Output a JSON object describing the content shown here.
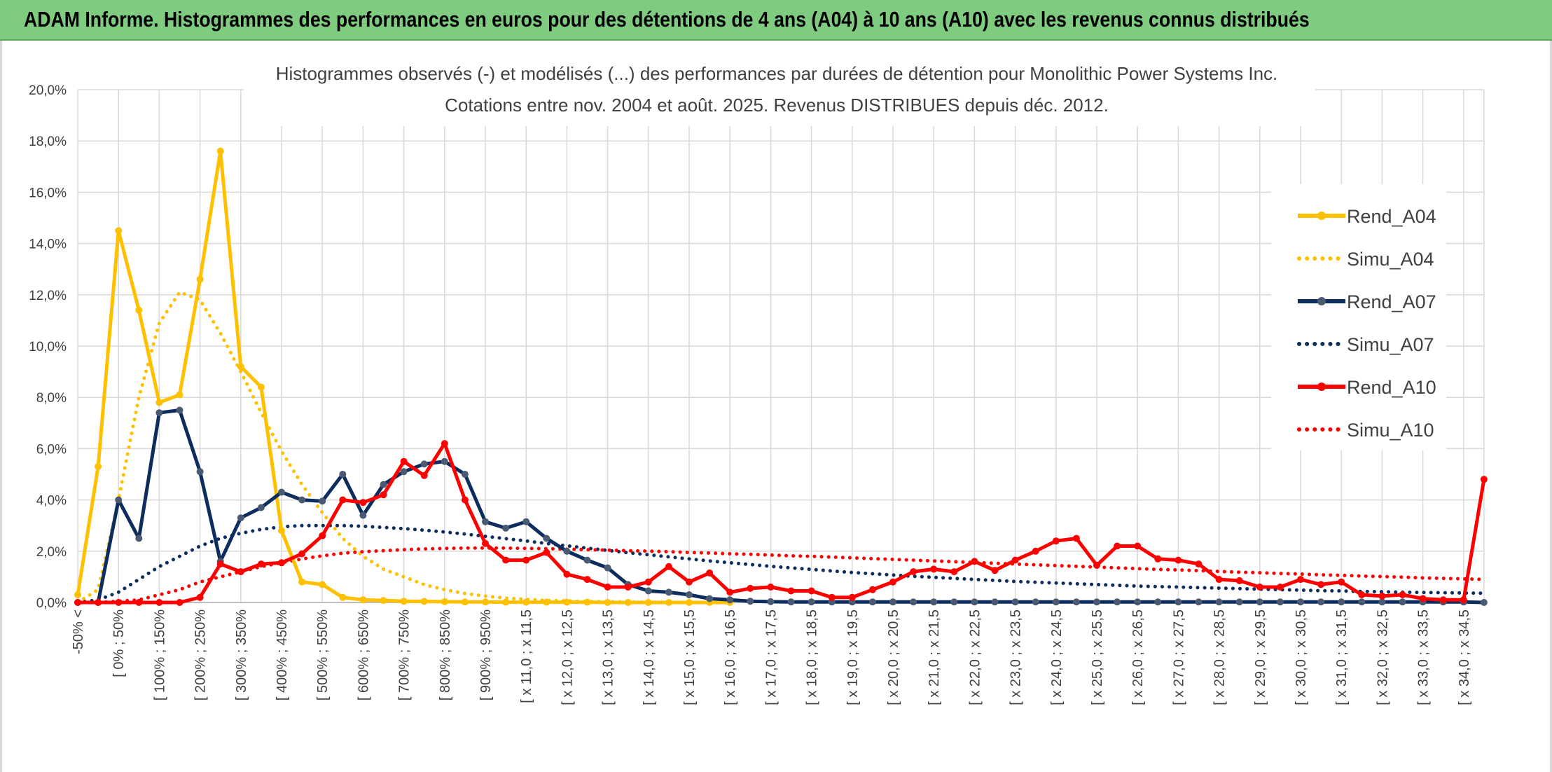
{
  "header": {
    "title": "ADAM Informe. Histogrammes des performances en euros pour des détentions de 4 ans (A04) à 10 ans (A10) avec les revenus connus distribués"
  },
  "chart_data": {
    "type": "line",
    "title_lines": [
      "Histogrammes observés (-) et modélisés (...) des performances par durées de détention pour Monolithic Power Systems Inc.",
      "Cotations entre nov. 2004 et août. 2025. Revenus DISTRIBUES depuis déc. 2012."
    ],
    "y_axis": {
      "min": 0,
      "max": 20,
      "step": 2,
      "tick_labels": [
        "0,0%",
        "2,0%",
        "4,0%",
        "6,0%",
        "8,0%",
        "10,0%",
        "12,0%",
        "14,0%",
        "16,0%",
        "18,0%",
        "20,0%"
      ]
    },
    "x_axis": {
      "category_count": 70,
      "shown_labels": [
        {
          "index": 0,
          "label": "-50% <"
        },
        {
          "index": 2,
          "label": "[ 0% ; 50%"
        },
        {
          "index": 4,
          "label": "[ 100% ; 150%"
        },
        {
          "index": 6,
          "label": "[ 200% ; 250%"
        },
        {
          "index": 8,
          "label": "[ 300% ; 350%"
        },
        {
          "index": 10,
          "label": "[ 400% ; 450%"
        },
        {
          "index": 12,
          "label": "[ 500% ; 550%"
        },
        {
          "index": 14,
          "label": "[ 600% ; 650%"
        },
        {
          "index": 16,
          "label": "[ 700% ; 750%"
        },
        {
          "index": 18,
          "label": "[ 800% ; 850%"
        },
        {
          "index": 20,
          "label": "[ 900% ; 950%"
        },
        {
          "index": 22,
          "label": "[ x 11,0 ; x 11,5"
        },
        {
          "index": 24,
          "label": "[ x 12,0 ; x 12,5"
        },
        {
          "index": 26,
          "label": "[ x 13,0 ; x 13,5"
        },
        {
          "index": 28,
          "label": "[ x 14,0 ; x 14,5"
        },
        {
          "index": 30,
          "label": "[ x 15,0 ; x 15,5"
        },
        {
          "index": 32,
          "label": "[ x 16,0 ; x 16,5"
        },
        {
          "index": 34,
          "label": "[ x 17,0 ; x 17,5"
        },
        {
          "index": 36,
          "label": "[ x 18,0 ; x 18,5"
        },
        {
          "index": 38,
          "label": "[ x 19,0 ; x 19,5"
        },
        {
          "index": 40,
          "label": "[ x 20,0 ; x 20,5"
        },
        {
          "index": 42,
          "label": "[ x 21,0 ; x 21,5"
        },
        {
          "index": 44,
          "label": "[ x 22,0 ; x 22,5"
        },
        {
          "index": 46,
          "label": "[ x 23,0 ; x 23,5"
        },
        {
          "index": 48,
          "label": "[ x 24,0 ; x 24,5"
        },
        {
          "index": 50,
          "label": "[ x 25,0 ; x 25,5"
        },
        {
          "index": 52,
          "label": "[ x 26,0 ; x 26,5"
        },
        {
          "index": 54,
          "label": "[ x 27,0 ; x 27,5"
        },
        {
          "index": 56,
          "label": "[ x 28,0 ; x 28,5"
        },
        {
          "index": 58,
          "label": "[ x 29,0 ; x 29,5"
        },
        {
          "index": 60,
          "label": "[ x 30,0 ; x 30,5"
        },
        {
          "index": 62,
          "label": "[ x 31,0 ; x 31,5"
        },
        {
          "index": 64,
          "label": "[ x 32,0 ; x 32,5"
        },
        {
          "index": 66,
          "label": "[ x 33,0 ; x 33,5"
        },
        {
          "index": 68,
          "label": "[ x 34,0 ; x 34,5"
        }
      ]
    },
    "gridlines": true,
    "legend_position": "right",
    "series": [
      {
        "name": "Rend_A04",
        "style": "solid",
        "color": "#ffc000",
        "values": [
          0.3,
          5.3,
          14.5,
          11.4,
          7.8,
          8.1,
          12.6,
          17.6,
          9.2,
          8.4,
          2.8,
          0.8,
          0.7,
          0.2,
          0.1,
          0.08,
          0.05,
          0.04,
          0.03,
          0.02,
          0.02,
          0.01,
          0.01,
          0.01,
          0.01,
          0.01,
          0.0,
          0.0,
          0.0,
          0.0,
          0.0,
          0.0,
          0.0
        ]
      },
      {
        "name": "Simu_A04",
        "style": "dotted",
        "color": "#ffc000",
        "values": [
          0.0,
          0.5,
          4.0,
          8.0,
          10.9,
          12.1,
          11.8,
          10.5,
          9.0,
          7.4,
          5.9,
          4.6,
          3.5,
          2.5,
          1.8,
          1.3,
          1.0,
          0.7,
          0.5,
          0.35,
          0.25,
          0.17,
          0.12,
          0.08,
          0.06,
          0.04,
          0.03,
          0.02,
          0.01,
          0.01,
          0.0,
          0.0
        ]
      },
      {
        "name": "Rend_A07",
        "style": "solid",
        "color": "#0c2d5e",
        "values": [
          0,
          0,
          4.0,
          2.5,
          7.4,
          7.5,
          5.1,
          1.6,
          3.3,
          3.7,
          4.3,
          4.0,
          3.95,
          5.0,
          3.4,
          4.6,
          5.1,
          5.4,
          5.5,
          5.0,
          3.15,
          2.9,
          3.15,
          2.5,
          2.0,
          1.65,
          1.35,
          0.7,
          0.45,
          0.4,
          0.3,
          0.15,
          0.1,
          0.05,
          0.03,
          0.02,
          0.02,
          0.02,
          0.02,
          0.02,
          0.02,
          0.02,
          0.02,
          0.02,
          0.02,
          0.02,
          0.02,
          0.02,
          0.02,
          0.02,
          0.02,
          0.02,
          0.02,
          0.02,
          0.02,
          0.02,
          0.02,
          0.02,
          0.02,
          0.02,
          0.02,
          0.02,
          0.02,
          0.02,
          0.02,
          0.02,
          0.02,
          0.02,
          0.02,
          0.0
        ]
      },
      {
        "name": "Simu_A07",
        "style": "dotted",
        "color": "#0c2d5e",
        "values": [
          0.0,
          0.1,
          0.4,
          0.9,
          1.4,
          1.8,
          2.2,
          2.5,
          2.7,
          2.85,
          2.95,
          3.0,
          3.0,
          3.0,
          2.97,
          2.93,
          2.88,
          2.82,
          2.75,
          2.67,
          2.58,
          2.49,
          2.4,
          2.3,
          2.21,
          2.12,
          2.03,
          1.94,
          1.86,
          1.78,
          1.7,
          1.62,
          1.55,
          1.48,
          1.41,
          1.35,
          1.29,
          1.23,
          1.17,
          1.12,
          1.07,
          1.02,
          0.98,
          0.94,
          0.9,
          0.86,
          0.82,
          0.79,
          0.76,
          0.73,
          0.7,
          0.67,
          0.64,
          0.62,
          0.6,
          0.58,
          0.56,
          0.54,
          0.52,
          0.5,
          0.48,
          0.46,
          0.45,
          0.43,
          0.42,
          0.4,
          0.39,
          0.38,
          0.37,
          0.36
        ]
      },
      {
        "name": "Rend_A10",
        "style": "solid",
        "color": "#ff0000",
        "values": [
          0,
          0,
          0,
          0,
          0,
          0,
          0.2,
          1.5,
          1.2,
          1.5,
          1.55,
          1.9,
          2.6,
          4.0,
          3.9,
          4.2,
          5.5,
          4.95,
          6.2,
          4.0,
          2.3,
          1.65,
          1.65,
          1.95,
          1.1,
          0.9,
          0.6,
          0.6,
          0.8,
          1.4,
          0.8,
          1.15,
          0.4,
          0.55,
          0.6,
          0.45,
          0.45,
          0.2,
          0.2,
          0.5,
          0.8,
          1.2,
          1.3,
          1.2,
          1.6,
          1.25,
          1.65,
          2.0,
          2.4,
          2.5,
          1.45,
          2.2,
          2.2,
          1.7,
          1.65,
          1.5,
          0.9,
          0.85,
          0.6,
          0.6,
          0.9,
          0.7,
          0.8,
          0.3,
          0.25,
          0.3,
          0.15,
          0.1,
          0.1,
          4.8
        ]
      },
      {
        "name": "Simu_A10",
        "style": "dotted",
        "color": "#ff0000",
        "values": [
          0.0,
          0.0,
          0.05,
          0.1,
          0.3,
          0.5,
          0.8,
          1.0,
          1.2,
          1.4,
          1.55,
          1.7,
          1.82,
          1.92,
          1.98,
          2.02,
          2.06,
          2.09,
          2.11,
          2.12,
          2.12,
          2.12,
          2.11,
          2.1,
          2.08,
          2.06,
          2.04,
          2.02,
          2.0,
          1.98,
          1.95,
          1.93,
          1.9,
          1.88,
          1.85,
          1.82,
          1.8,
          1.77,
          1.74,
          1.71,
          1.68,
          1.65,
          1.62,
          1.59,
          1.56,
          1.53,
          1.5,
          1.47,
          1.44,
          1.41,
          1.38,
          1.35,
          1.32,
          1.29,
          1.27,
          1.24,
          1.21,
          1.18,
          1.16,
          1.13,
          1.11,
          1.08,
          1.06,
          1.03,
          1.01,
          0.99,
          0.96,
          0.94,
          0.92,
          0.9
        ]
      }
    ]
  }
}
